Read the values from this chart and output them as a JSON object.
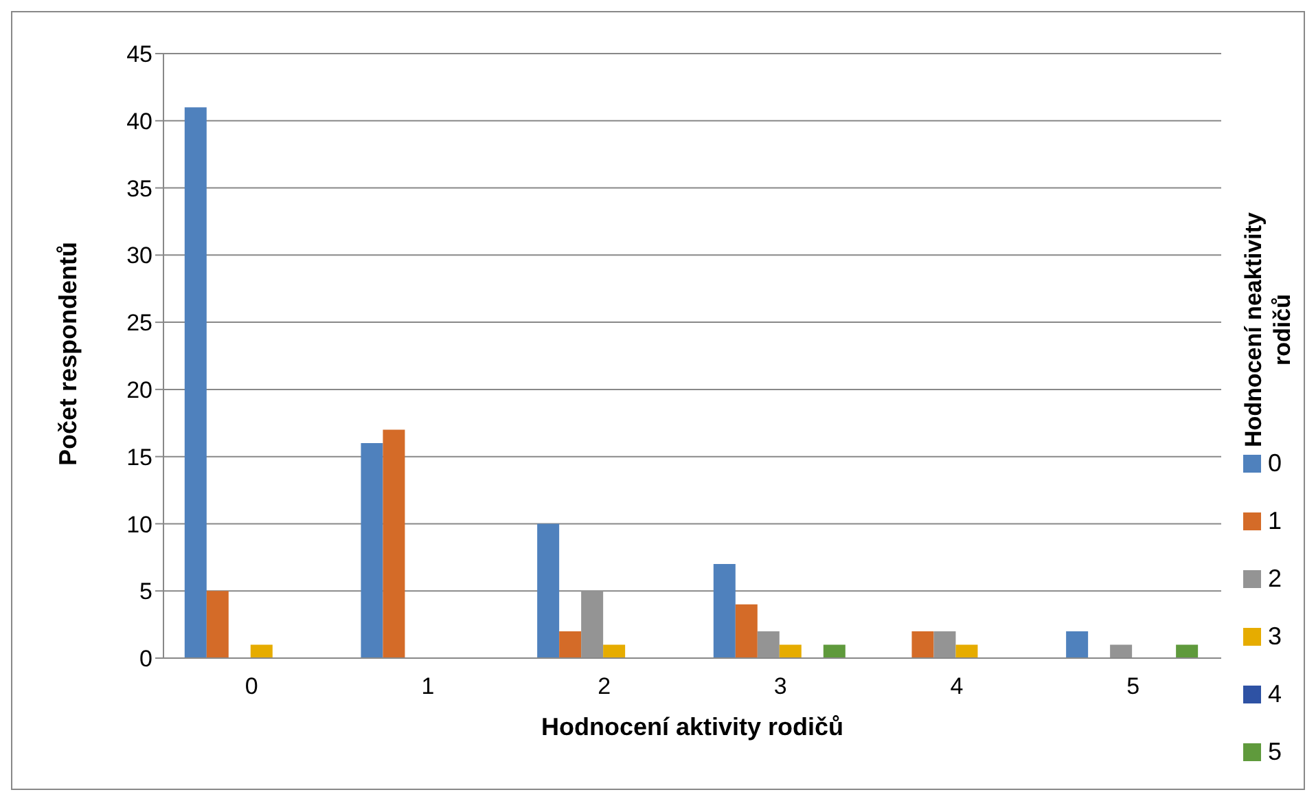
{
  "chart_data": {
    "type": "bar",
    "xlabel": "Hodnocení aktivity rodičů",
    "ylabel": "Počet respondentů",
    "legend_title": "Hodnocení neaktivity rodičů",
    "categories": [
      "0",
      "1",
      "2",
      "3",
      "4",
      "5"
    ],
    "series": [
      {
        "name": "0",
        "color": "#4f81bd",
        "values": [
          41,
          16,
          10,
          7,
          0,
          2
        ]
      },
      {
        "name": "1",
        "color": "#d46b28",
        "values": [
          5,
          17,
          2,
          4,
          2,
          0
        ]
      },
      {
        "name": "2",
        "color": "#949494",
        "values": [
          0,
          0,
          5,
          2,
          2,
          1
        ]
      },
      {
        "name": "3",
        "color": "#e6ac00",
        "values": [
          1,
          0,
          1,
          1,
          1,
          0
        ]
      },
      {
        "name": "4",
        "color": "#2e52a4",
        "values": [
          0,
          0,
          0,
          0,
          0,
          0
        ]
      },
      {
        "name": "5",
        "color": "#5f9a3c",
        "values": [
          0,
          0,
          0,
          1,
          0,
          1
        ]
      }
    ],
    "ylim": [
      0,
      45
    ],
    "yticks": [
      0,
      5,
      10,
      15,
      20,
      25,
      30,
      35,
      40,
      45
    ],
    "grid": "y",
    "legend": "right"
  }
}
